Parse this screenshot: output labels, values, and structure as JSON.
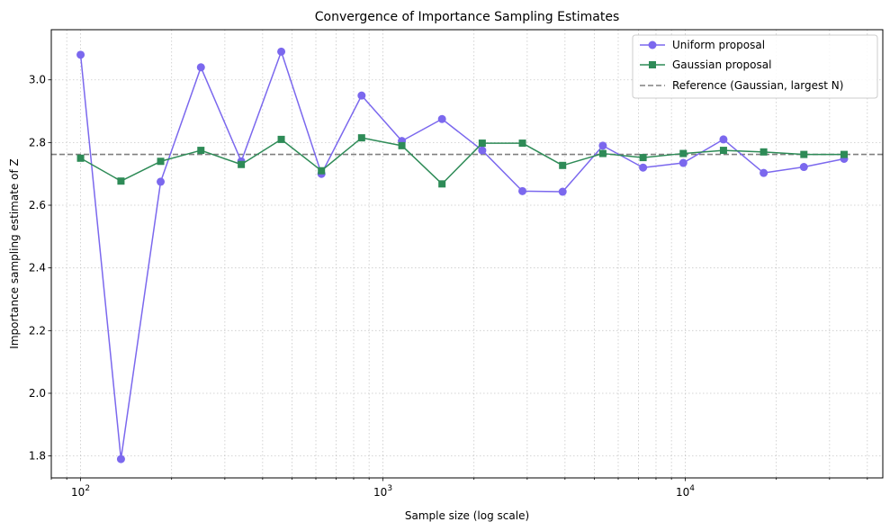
{
  "chart_data": {
    "type": "line",
    "title": "Convergence of Importance Sampling Estimates",
    "xlabel": "Sample size (log scale)",
    "ylabel": "Importance sampling estimate of Z",
    "xscale": "log",
    "xlim": [
      80,
      45000
    ],
    "ylim": [
      1.73,
      3.16
    ],
    "x_ticks": [
      {
        "value": 100,
        "base": "10",
        "exp": "2"
      },
      {
        "value": 1000,
        "base": "10",
        "exp": "3"
      },
      {
        "value": 10000,
        "base": "10",
        "exp": "4"
      }
    ],
    "y_ticks": [
      "1.8",
      "2.0",
      "2.2",
      "2.4",
      "2.6",
      "2.8",
      "3.0"
    ],
    "grid": true,
    "legend_position": "top-right",
    "x": [
      100,
      136,
      184,
      250,
      340,
      461,
      626,
      850,
      1155,
      1568,
      2130,
      2893,
      3929,
      5337,
      7250,
      9846,
      13374,
      18165,
      24673,
      33513
    ],
    "series": [
      {
        "name": "Uniform proposal",
        "color": "#7b68ee",
        "marker": "circle",
        "values": [
          3.08,
          1.79,
          2.675,
          3.04,
          2.74,
          3.09,
          2.7,
          2.95,
          2.805,
          2.875,
          2.775,
          2.645,
          2.643,
          2.79,
          2.72,
          2.735,
          2.81,
          2.703,
          2.722,
          2.748
        ]
      },
      {
        "name": "Gaussian proposal",
        "color": "#2e8b57",
        "marker": "square",
        "values": [
          2.75,
          2.677,
          2.74,
          2.775,
          2.73,
          2.81,
          2.71,
          2.815,
          2.79,
          2.668,
          2.798,
          2.798,
          2.727,
          2.765,
          2.752,
          2.765,
          2.775,
          2.77,
          2.762,
          2.762
        ]
      }
    ],
    "reference": {
      "name": "Reference (Gaussian, largest N)",
      "value": 2.762,
      "color": "#808080",
      "style": "dashed"
    }
  }
}
